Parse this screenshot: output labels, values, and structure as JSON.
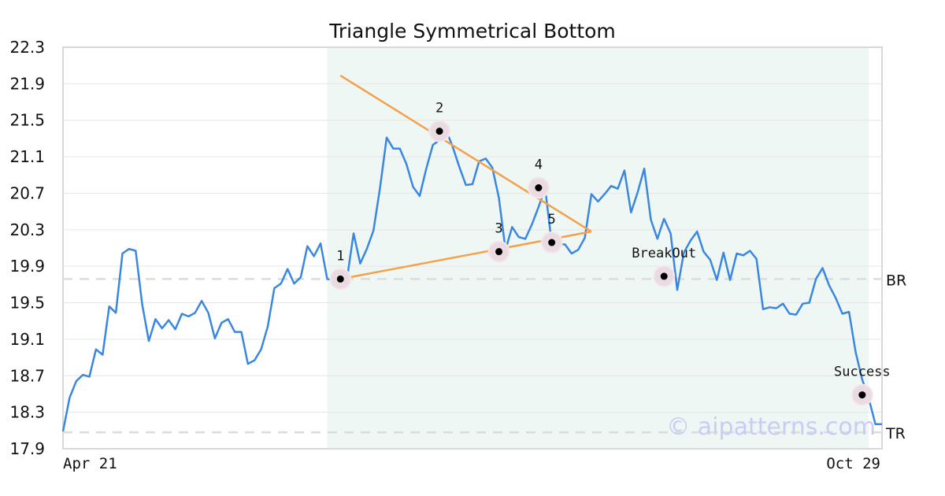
{
  "chart_data": {
    "type": "line",
    "title": "Triangle Symmetrical Bottom",
    "ylim": [
      17.9,
      22.3
    ],
    "y_ticks": [
      "22.3",
      "21.9",
      "21.5",
      "21.1",
      "20.7",
      "20.3",
      "19.9",
      "19.5",
      "19.1",
      "18.7",
      "18.3",
      "17.9"
    ],
    "x_tick_labels": [
      "Apr 21",
      "Oct 29"
    ],
    "grid": true,
    "series": [
      {
        "color": "#3987e0",
        "values": [
          18.09,
          18.46,
          18.64,
          18.71,
          18.69,
          18.99,
          18.93,
          19.46,
          19.39,
          20.04,
          20.09,
          20.07,
          19.48,
          19.08,
          19.32,
          19.22,
          19.31,
          19.21,
          19.38,
          19.35,
          19.39,
          19.52,
          19.39,
          19.11,
          19.28,
          19.32,
          19.18,
          19.18,
          18.83,
          18.87,
          18.99,
          19.24,
          19.66,
          19.71,
          19.87,
          19.71,
          19.78,
          20.12,
          20.01,
          20.15,
          19.76,
          19.75,
          19.79,
          19.76,
          20.26,
          19.93,
          20.09,
          20.29,
          20.76,
          21.31,
          21.19,
          21.19,
          21.02,
          20.77,
          20.67,
          20.97,
          21.23,
          21.28,
          21.39,
          21.21,
          20.99,
          20.79,
          20.8,
          21.05,
          21.08,
          20.98,
          20.65,
          20.08,
          20.33,
          20.22,
          20.2,
          20.36,
          20.55,
          20.75,
          20.15,
          20.14,
          20.14,
          20.04,
          20.08,
          20.21,
          20.69,
          20.61,
          20.69,
          20.78,
          20.75,
          20.95,
          20.49,
          20.71,
          20.97,
          20.41,
          20.2,
          20.42,
          20.26,
          19.64,
          20.05,
          20.18,
          20.28,
          20.06,
          19.97,
          19.75,
          20.05,
          19.75,
          20.04,
          20.02,
          20.07,
          19.98,
          19.43,
          19.45,
          19.44,
          19.49,
          19.38,
          19.37,
          19.49,
          19.5,
          19.76,
          19.88,
          19.69,
          19.55,
          19.38,
          19.4,
          18.96,
          18.66,
          18.45,
          18.17,
          18.17
        ]
      }
    ],
    "triangle_lines": [
      {
        "color": "#f5a04a",
        "points": [
          [
            42,
            21.99
          ],
          [
            80,
            20.28
          ]
        ]
      },
      {
        "color": "#f5a04a",
        "points": [
          [
            42,
            19.76
          ],
          [
            80,
            20.28
          ]
        ]
      }
    ],
    "pattern_points": [
      {
        "label": "1",
        "x": 42,
        "y": 19.76
      },
      {
        "label": "2",
        "x": 57,
        "y": 21.38
      },
      {
        "label": "3",
        "x": 66,
        "y": 20.06
      },
      {
        "label": "4",
        "x": 72,
        "y": 20.76
      },
      {
        "label": "5",
        "x": 74,
        "y": 20.16
      },
      {
        "label": "BreakOut",
        "x": 91,
        "y": 19.79
      },
      {
        "label": "Success",
        "x": 121,
        "y": 18.49
      }
    ],
    "reference_lines": [
      {
        "label": "BR",
        "y": 19.76
      },
      {
        "label": "TR",
        "y": 18.08
      }
    ],
    "highlight_range": [
      40,
      122
    ],
    "watermark": "© aipatterns.com"
  }
}
